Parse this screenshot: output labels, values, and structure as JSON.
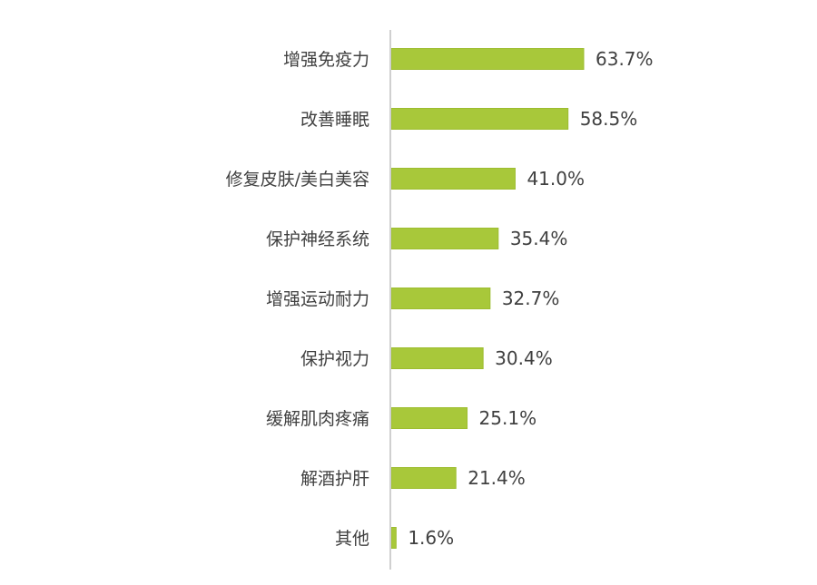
{
  "chart_data": {
    "type": "bar",
    "orientation": "horizontal",
    "categories": [
      "增强免疫力",
      "改善睡眠",
      "修复皮肤/美白美容",
      "保护神经系统",
      "增强运动耐力",
      "保护视力",
      "缓解肌肉疼痛",
      "解酒护肝",
      "其他"
    ],
    "values": [
      63.7,
      58.5,
      41.0,
      35.4,
      32.7,
      30.4,
      25.1,
      21.4,
      1.6
    ],
    "labels": [
      "63.7%",
      "58.5%",
      "41.0%",
      "35.4%",
      "32.7%",
      "30.4%",
      "25.1%",
      "21.4%",
      "1.6%"
    ],
    "title": "",
    "xlabel": "",
    "ylabel": "",
    "xlim": [
      0,
      100
    ],
    "grid": false,
    "legend": "none",
    "colors": {
      "bar": "#a8c83a",
      "bar_border": "#9dbd30",
      "axis": "#d0d0d0",
      "text": "#404040"
    }
  }
}
